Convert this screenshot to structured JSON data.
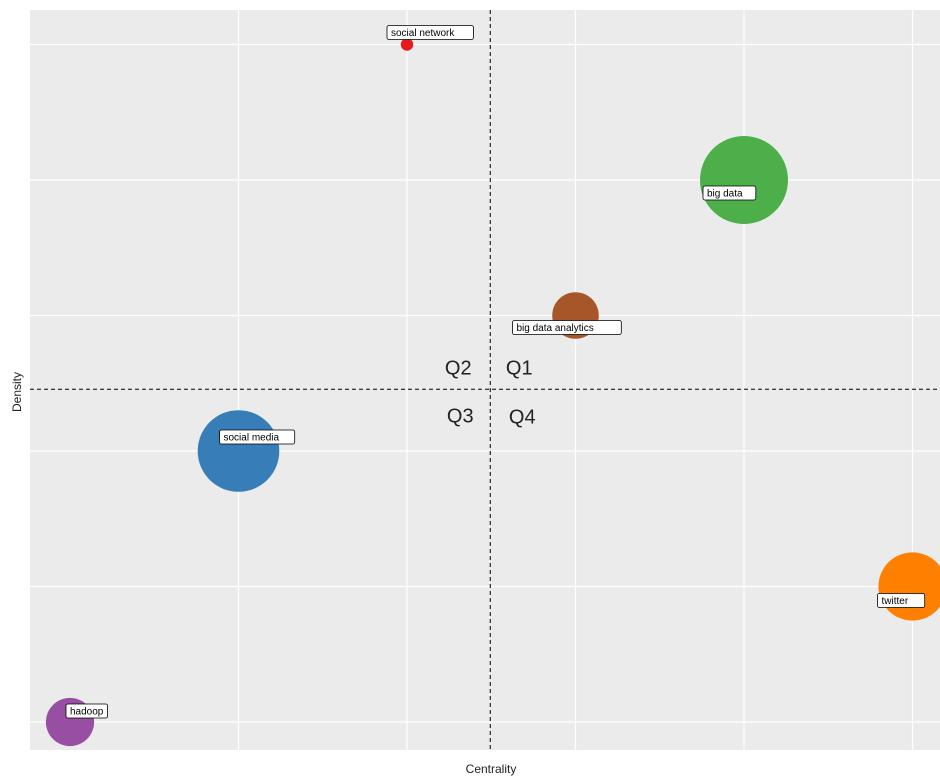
{
  "chart_data": {
    "type": "scatter",
    "title": "",
    "xlabel": "Centrality",
    "ylabel": "Density",
    "xlim": [
      0,
      5
    ],
    "ylim": [
      0,
      5
    ],
    "grid": true,
    "x_gridlines": [
      1,
      2,
      3,
      4,
      5
    ],
    "y_gridlines": [
      0,
      1,
      2,
      3,
      4,
      5
    ],
    "reference_lines": {
      "x": 2.5,
      "y": 2.5
    },
    "quadrant_labels": [
      "Q2",
      "Q1",
      "Q3",
      "Q4"
    ],
    "points": [
      {
        "label": "social network",
        "x": 2.0,
        "y": 5.0,
        "size": 0.02,
        "color": "#e41a1c"
      },
      {
        "label": "big data",
        "x": 4.0,
        "y": 4.0,
        "size": 1.0,
        "color": "#4daf4a"
      },
      {
        "label": "big data analytics",
        "x": 3.0,
        "y": 3.0,
        "size": 0.28,
        "color": "#a65628"
      },
      {
        "label": "social media",
        "x": 1.0,
        "y": 2.0,
        "size": 0.86,
        "color": "#377eb8"
      },
      {
        "label": "twitter",
        "x": 5.0,
        "y": 1.0,
        "size": 0.6,
        "color": "#ff7f00"
      },
      {
        "label": "hadoop",
        "x": 0.0,
        "y": 0.0,
        "size": 0.3,
        "color": "#984ea3"
      }
    ]
  }
}
